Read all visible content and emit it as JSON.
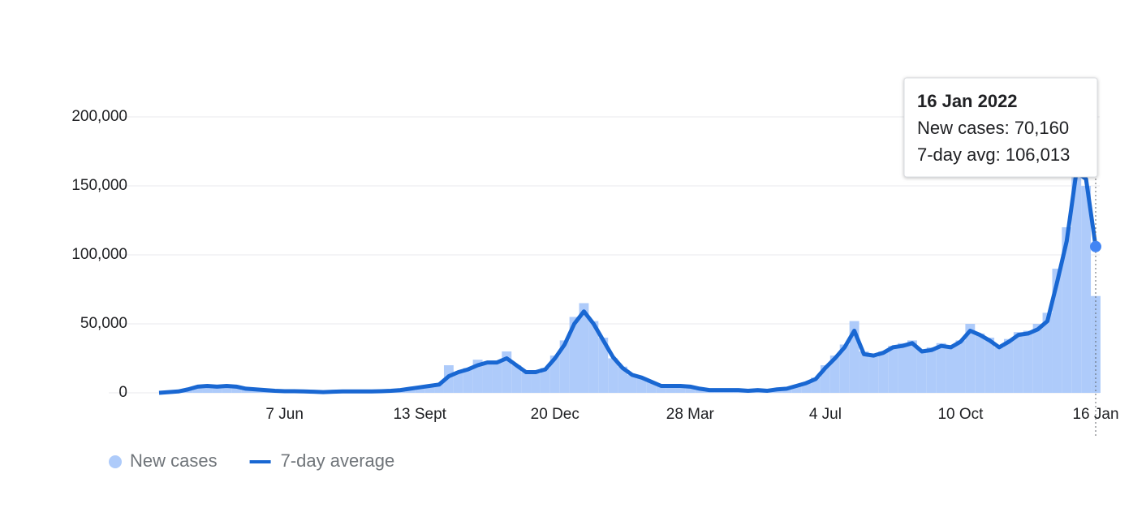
{
  "chart_data": {
    "type": "bar-line",
    "categories": [
      null,
      null,
      null,
      null,
      null,
      null,
      null,
      null,
      null,
      null,
      null,
      null,
      null,
      "7 Jun",
      null,
      null,
      null,
      null,
      null,
      null,
      null,
      null,
      null,
      null,
      null,
      null,
      null,
      "13 Sept",
      null,
      null,
      null,
      null,
      null,
      null,
      null,
      null,
      null,
      null,
      null,
      null,
      null,
      "20 Dec",
      null,
      null,
      null,
      null,
      null,
      null,
      null,
      null,
      null,
      null,
      null,
      null,
      null,
      "28 Mar",
      null,
      null,
      null,
      null,
      null,
      null,
      null,
      null,
      null,
      null,
      null,
      null,
      null,
      "4 Jul",
      null,
      null,
      null,
      null,
      null,
      null,
      null,
      null,
      null,
      null,
      null,
      null,
      null,
      "10 Oct",
      null,
      null,
      null,
      null,
      null,
      null,
      null,
      null,
      null,
      null,
      null,
      null,
      null,
      "16 Jan"
    ],
    "series": [
      {
        "name": "New cases",
        "type": "bar",
        "color": "#aecbfa",
        "values": [
          0,
          800,
          1200,
          3000,
          5000,
          5200,
          4400,
          5300,
          4600,
          3200,
          2600,
          2000,
          1500,
          1300,
          1200,
          1000,
          800,
          600,
          900,
          1100,
          1000,
          1100,
          1000,
          1300,
          1600,
          2200,
          3200,
          4200,
          5200,
          7000,
          20000,
          15000,
          18000,
          24000,
          22000,
          23000,
          30000,
          20000,
          15000,
          14000,
          18000,
          27000,
          38000,
          55000,
          65000,
          52000,
          40000,
          25000,
          19000,
          13000,
          11000,
          8000,
          5200,
          5000,
          5000,
          4600,
          3000,
          2000,
          2000,
          2000,
          2000,
          1500,
          2000,
          1500,
          2500,
          3000,
          5000,
          7500,
          11000,
          20000,
          27000,
          35000,
          52000,
          30000,
          26000,
          30000,
          34000,
          36000,
          38000,
          31000,
          33000,
          36000,
          34000,
          38000,
          50000,
          43000,
          40000,
          33000,
          39000,
          44000,
          45000,
          50000,
          58000,
          90000,
          120000,
          175000,
          150000,
          70160
        ]
      },
      {
        "name": "7-day average",
        "type": "line",
        "color": "#1967d2",
        "values": [
          0,
          500,
          1000,
          2500,
          4500,
          5000,
          4500,
          5000,
          4500,
          3000,
          2500,
          2000,
          1500,
          1200,
          1200,
          1000,
          800,
          500,
          800,
          1000,
          1000,
          1000,
          1000,
          1200,
          1500,
          2000,
          3000,
          4000,
          5000,
          6000,
          12000,
          15000,
          17000,
          20000,
          22000,
          22000,
          25000,
          20000,
          15000,
          15000,
          17000,
          25000,
          35000,
          50000,
          59000,
          50000,
          38000,
          26000,
          18000,
          13000,
          11000,
          8000,
          5000,
          5000,
          5000,
          4500,
          3000,
          2000,
          2000,
          2000,
          2000,
          1500,
          2000,
          1500,
          2500,
          3000,
          5000,
          7000,
          10000,
          18000,
          25000,
          33000,
          45000,
          28000,
          27000,
          29000,
          33000,
          34000,
          36000,
          30000,
          31000,
          34000,
          33000,
          37000,
          45000,
          42000,
          38000,
          33000,
          37000,
          42000,
          43000,
          46000,
          52000,
          80000,
          110000,
          160000,
          155000,
          106013
        ]
      }
    ],
    "ylim": [
      0,
      200000
    ],
    "yticks": [
      0,
      {
        "value": 50000,
        "label": "50,000"
      },
      {
        "value": 100000,
        "label": "100,000"
      },
      {
        "value": 150000,
        "label": "150,000"
      },
      {
        "value": 200000,
        "label": "200,000"
      }
    ],
    "grid": true,
    "tooltip": {
      "title": "16 Jan 2022",
      "lines": [
        "New cases: 70,160",
        "7-day avg: 106,013"
      ]
    }
  }
}
